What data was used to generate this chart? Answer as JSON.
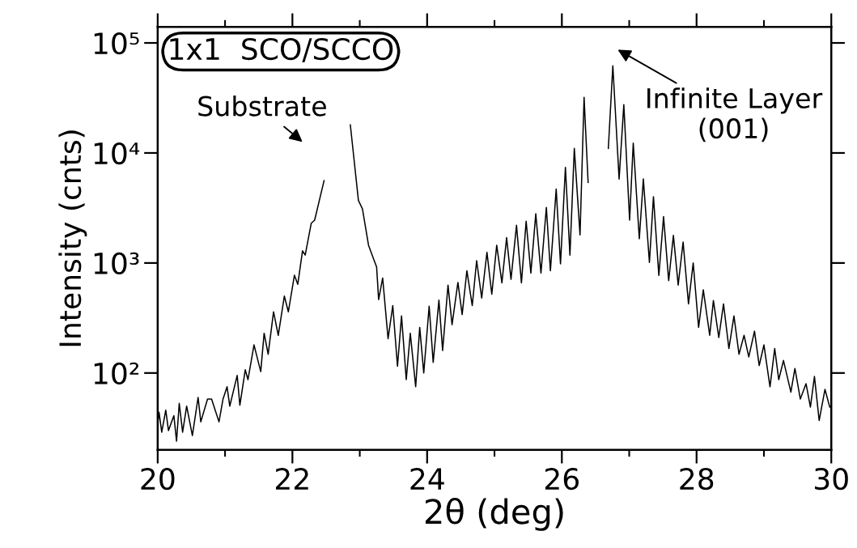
{
  "chart_data": {
    "type": "line",
    "xlabel": "2θ (deg)",
    "ylabel": "Intensity (cnts)",
    "log": "y",
    "grid": false,
    "xlim": [
      20,
      30
    ],
    "ylim": [
      20,
      140000
    ],
    "xticks": [
      20,
      {
        "value": 21,
        "label": null
      },
      22,
      {
        "value": 23,
        "label": null
      },
      24,
      {
        "value": 25,
        "label": null
      },
      26,
      {
        "value": 27,
        "label": null
      },
      28,
      {
        "value": 29,
        "label": null
      },
      30
    ],
    "yticks": [
      {
        "value": 100,
        "label": "10²"
      },
      {
        "value": 1000,
        "label": "10³"
      },
      {
        "value": 10000,
        "label": "10⁴"
      },
      {
        "value": 100000,
        "label": "10⁵"
      }
    ],
    "annotations": [
      "1x1  SCO/SCCO",
      "Substrate",
      "Infinite Layer\n(001)"
    ],
    "series": [
      {
        "color": "#000000",
        "x": [
          20.0,
          20.02,
          20.06,
          20.12,
          20.16,
          20.24,
          20.28,
          20.32,
          20.37,
          20.43,
          20.515,
          20.6,
          20.64,
          20.74,
          20.8,
          20.91,
          20.97,
          21.03,
          21.07,
          21.18,
          21.22,
          21.3,
          21.34,
          21.43,
          21.53,
          21.58,
          21.64,
          21.72,
          21.79,
          21.88,
          21.94,
          22.03,
          22.08,
          22.15,
          22.19,
          22.28,
          22.33,
          22.47,
          22.67,
          22.86,
          22.98,
          23.04,
          23.13,
          23.21,
          23.25,
          23.28,
          23.34,
          23.42,
          23.49,
          23.56,
          23.62,
          23.69,
          23.75,
          23.83,
          23.89,
          23.95,
          24.03,
          24.09,
          24.175,
          24.23,
          24.31,
          24.37,
          24.457,
          24.52,
          24.59,
          24.67,
          24.735,
          24.81,
          24.888,
          24.96,
          25.033,
          25.11,
          25.18,
          25.245,
          25.327,
          25.4,
          25.47,
          25.54,
          25.613,
          25.69,
          25.77,
          25.83,
          25.916,
          25.98,
          26.053,
          26.12,
          26.185,
          26.27,
          26.33,
          26.39,
          26.44,
          26.65,
          26.69,
          26.757,
          26.85,
          26.92,
          27.006,
          27.06,
          27.15,
          27.21,
          27.3,
          27.36,
          27.44,
          27.51,
          27.586,
          27.656,
          27.727,
          27.8,
          27.88,
          27.95,
          28.03,
          28.1,
          28.195,
          28.25,
          28.33,
          28.4,
          28.48,
          28.555,
          28.63,
          28.705,
          28.775,
          28.86,
          28.93,
          29.0,
          29.09,
          29.16,
          29.22,
          29.29,
          29.4,
          29.46,
          29.54,
          29.625,
          29.69,
          29.75,
          29.82,
          29.906,
          29.977
        ],
        "values": [
          34,
          44,
          29,
          46,
          30,
          41,
          24,
          53,
          29,
          50,
          27,
          60,
          36,
          58,
          58,
          36,
          58,
          75,
          50,
          95,
          51,
          107,
          87,
          180,
          103,
          230,
          148,
          360,
          220,
          500,
          360,
          775,
          640,
          1290,
          1180,
          2300,
          2450,
          5600,
          null,
          18000,
          3700,
          3100,
          1450,
          1070,
          920,
          465,
          730,
          205,
          410,
          115,
          330,
          87,
          230,
          75,
          260,
          100,
          405,
          125,
          460,
          160,
          630,
          275,
          665,
          340,
          850,
          410,
          1050,
          480,
          1250,
          520,
          1450,
          660,
          1700,
          710,
          2200,
          660,
          2400,
          810,
          2800,
          810,
          3200,
          850,
          4700,
          980,
          7400,
          1180,
          11000,
          1800,
          32000,
          5400,
          null,
          null,
          11000,
          62000,
          5800,
          27500,
          2450,
          12300,
          1660,
          5800,
          1010,
          4000,
          770,
          2640,
          690,
          1780,
          630,
          1550,
          425,
          1000,
          260,
          570,
          220,
          455,
          210,
          425,
          167,
          330,
          148,
          220,
          140,
          240,
          117,
          180,
          75,
          167,
          87,
          130,
          67,
          110,
          58,
          80,
          49,
          93,
          37,
          71,
          49
        ]
      }
    ]
  }
}
